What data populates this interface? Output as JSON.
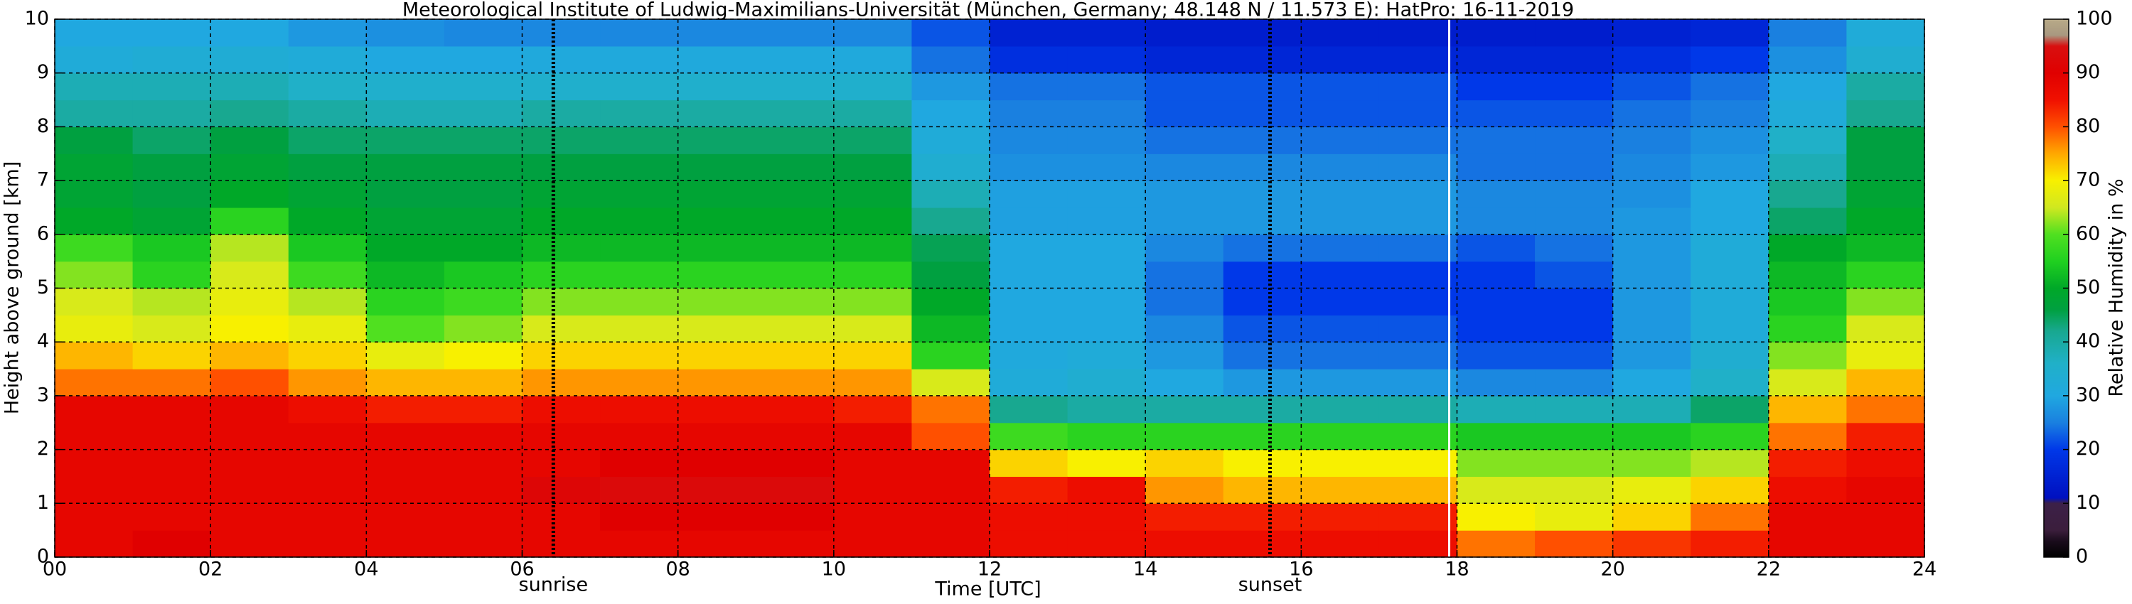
{
  "chart_data": {
    "type": "heatmap",
    "title": "Meteorological Institute of Ludwig-Maximilians-Universität (München, Germany; 48.148 N / 11.573 E):    HatPro: 16-11-2019",
    "x_label": "Time [UTC]",
    "y_label": "Height above ground [km]",
    "colorbar_label": "Relative Humidity in %",
    "x": [
      0.5,
      1.5,
      2.5,
      3.5,
      4.5,
      5.5,
      6.5,
      7.5,
      8.5,
      9.5,
      10.5,
      11.5,
      12.5,
      13.5,
      14.5,
      15.5,
      16.5,
      17.5,
      18.5,
      19.5,
      20.5,
      21.5,
      22.5,
      23.5
    ],
    "y": [
      0.25,
      0.75,
      1.25,
      1.75,
      2.25,
      2.75,
      3.25,
      3.75,
      4.25,
      4.75,
      5.25,
      5.75,
      6.25,
      6.75,
      7.25,
      7.75,
      8.25,
      8.75,
      9.25,
      9.75
    ],
    "values": [
      [
        88,
        88,
        88,
        88,
        88,
        88,
        78,
        74,
        68,
        66,
        62,
        58,
        50,
        48,
        48,
        46,
        40,
        38,
        32,
        30
      ],
      [
        90,
        88,
        88,
        88,
        88,
        88,
        78,
        72,
        66,
        64,
        56,
        54,
        48,
        46,
        46,
        44,
        40,
        38,
        33,
        30
      ],
      [
        88,
        88,
        88,
        88,
        88,
        88,
        80,
        74,
        70,
        68,
        66,
        64,
        56,
        50,
        48,
        46,
        42,
        38,
        33,
        30
      ],
      [
        88,
        88,
        88,
        88,
        88,
        86,
        76,
        72,
        68,
        64,
        58,
        54,
        50,
        48,
        46,
        44,
        40,
        36,
        32,
        28
      ],
      [
        88,
        88,
        88,
        88,
        88,
        84,
        74,
        68,
        60,
        56,
        52,
        50,
        48,
        46,
        46,
        44,
        38,
        35,
        30,
        27
      ],
      [
        88,
        88,
        88,
        88,
        88,
        84,
        74,
        70,
        62,
        58,
        54,
        50,
        48,
        46,
        46,
        44,
        38,
        35,
        30,
        26
      ],
      [
        88,
        88,
        92,
        88,
        88,
        86,
        76,
        72,
        66,
        62,
        56,
        52,
        50,
        48,
        46,
        44,
        40,
        35,
        31,
        26
      ],
      [
        88,
        90,
        93,
        90,
        88,
        86,
        76,
        72,
        66,
        62,
        56,
        52,
        50,
        48,
        46,
        44,
        40,
        35,
        31,
        26
      ],
      [
        88,
        90,
        93,
        90,
        88,
        86,
        76,
        72,
        66,
        62,
        56,
        52,
        50,
        48,
        46,
        44,
        40,
        35,
        31,
        26
      ],
      [
        88,
        90,
        93,
        90,
        88,
        86,
        76,
        72,
        66,
        62,
        56,
        52,
        50,
        48,
        46,
        44,
        40,
        35,
        31,
        26
      ],
      [
        88,
        88,
        88,
        88,
        88,
        84,
        76,
        72,
        66,
        62,
        56,
        52,
        50,
        48,
        46,
        44,
        40,
        35,
        31,
        26
      ],
      [
        88,
        88,
        88,
        88,
        80,
        78,
        66,
        56,
        52,
        50,
        46,
        45,
        42,
        38,
        34,
        32,
        30,
        28,
        24,
        22
      ],
      [
        86,
        86,
        84,
        72,
        58,
        42,
        32,
        31,
        30,
        30,
        30,
        30,
        29,
        29,
        27,
        26,
        25,
        24,
        18,
        15
      ],
      [
        86,
        86,
        86,
        70,
        56,
        40,
        34,
        32,
        30,
        30,
        30,
        30,
        29,
        29,
        27,
        26,
        25,
        24,
        18,
        15
      ],
      [
        86,
        84,
        76,
        72,
        56,
        40,
        30,
        28,
        26,
        24,
        24,
        26,
        28,
        28,
        26,
        24,
        22,
        22,
        16,
        14
      ],
      [
        86,
        84,
        74,
        70,
        56,
        40,
        28,
        24,
        22,
        20,
        20,
        24,
        28,
        28,
        26,
        24,
        22,
        22,
        16,
        14
      ],
      [
        86,
        84,
        74,
        70,
        56,
        40,
        28,
        24,
        22,
        20,
        20,
        24,
        28,
        28,
        26,
        24,
        22,
        22,
        16,
        14
      ],
      [
        86,
        84,
        74,
        70,
        56,
        40,
        28,
        24,
        22,
        20,
        20,
        24,
        28,
        28,
        26,
        24,
        22,
        22,
        16,
        14
      ],
      [
        78,
        70,
        66,
        62,
        54,
        38,
        26,
        22,
        20,
        20,
        20,
        22,
        26,
        26,
        24,
        24,
        22,
        20,
        16,
        14
      ],
      [
        80,
        68,
        66,
        62,
        54,
        38,
        26,
        22,
        20,
        20,
        22,
        24,
        26,
        26,
        24,
        24,
        22,
        20,
        16,
        14
      ],
      [
        82,
        72,
        68,
        62,
        54,
        38,
        30,
        28,
        28,
        28,
        28,
        28,
        28,
        27,
        26,
        25,
        24,
        22,
        18,
        15
      ],
      [
        84,
        78,
        72,
        64,
        56,
        44,
        36,
        34,
        32,
        32,
        32,
        32,
        30,
        30,
        28,
        27,
        25,
        24,
        20,
        16
      ],
      [
        88,
        88,
        86,
        84,
        78,
        74,
        66,
        62,
        56,
        54,
        52,
        50,
        44,
        42,
        38,
        36,
        32,
        30,
        27,
        25
      ],
      [
        88,
        88,
        88,
        86,
        84,
        78,
        74,
        68,
        66,
        62,
        56,
        52,
        50,
        48,
        46,
        46,
        42,
        40,
        34,
        32
      ]
    ],
    "xlim": [
      0,
      24
    ],
    "xticks": [
      {
        "value": 0,
        "label": "00"
      },
      {
        "value": 2,
        "label": "02"
      },
      {
        "value": 4,
        "label": "04"
      },
      {
        "value": 6,
        "label": "06"
      },
      {
        "value": 8,
        "label": "08"
      },
      10,
      12,
      14,
      16,
      18,
      20,
      22,
      24
    ],
    "ylim": [
      0,
      10
    ],
    "yticks": [
      0,
      1,
      2,
      3,
      4,
      5,
      6,
      7,
      8,
      9,
      10
    ],
    "clim": [
      0,
      100
    ],
    "cticks": [
      0,
      10,
      20,
      30,
      40,
      50,
      60,
      70,
      80,
      90,
      100
    ],
    "colorscale": [
      {
        "value": 0,
        "color": "#000000"
      },
      {
        "value": 3,
        "color": "#1a0c1c"
      },
      {
        "value": 5,
        "color": "#3b1e3c"
      },
      {
        "value": 10,
        "color": "#3c2048"
      },
      {
        "value": 11,
        "color": "#0010c0"
      },
      {
        "value": 20,
        "color": "#0038e8"
      },
      {
        "value": 25,
        "color": "#1a80e0"
      },
      {
        "value": 30,
        "color": "#20a8e0"
      },
      {
        "value": 36,
        "color": "#20b0c8"
      },
      {
        "value": 42,
        "color": "#18a890"
      },
      {
        "value": 46,
        "color": "#00a040"
      },
      {
        "value": 50,
        "color": "#00a828"
      },
      {
        "value": 55,
        "color": "#20d020"
      },
      {
        "value": 60,
        "color": "#50e020"
      },
      {
        "value": 65,
        "color": "#d0e820"
      },
      {
        "value": 70,
        "color": "#f8f000"
      },
      {
        "value": 75,
        "color": "#ffa800"
      },
      {
        "value": 80,
        "color": "#ff5000"
      },
      {
        "value": 85,
        "color": "#f01000"
      },
      {
        "value": 90,
        "color": "#e00000"
      },
      {
        "value": 95,
        "color": "#d81010"
      },
      {
        "value": 97,
        "color": "#a89880"
      },
      {
        "value": 100,
        "color": "#b8aa88"
      }
    ],
    "grid": true,
    "annotations": [
      {
        "text": "sunrise",
        "x": 6.4
      },
      {
        "text": "sunset",
        "x": 15.6
      }
    ],
    "vlines": [
      {
        "x": 17.9,
        "color": "#ffffff"
      }
    ]
  }
}
